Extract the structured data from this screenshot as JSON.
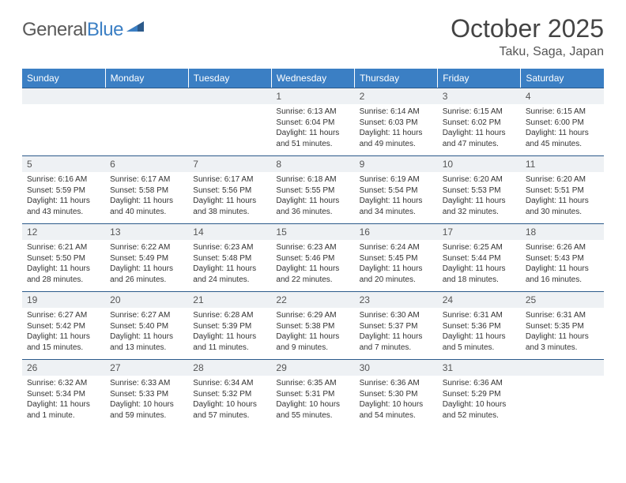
{
  "logo": {
    "part1": "General",
    "part2": "Blue"
  },
  "title": {
    "month": "October 2025",
    "location": "Taku, Saga, Japan"
  },
  "colors": {
    "header_bg": "#3b7fc4",
    "header_text": "#ffffff",
    "daynum_bg": "#eef1f4",
    "row_border": "#2c5a8a",
    "text": "#333333",
    "page_bg": "#ffffff"
  },
  "weekdays": [
    "Sunday",
    "Monday",
    "Tuesday",
    "Wednesday",
    "Thursday",
    "Friday",
    "Saturday"
  ],
  "weeks": [
    [
      {
        "n": "",
        "lines": []
      },
      {
        "n": "",
        "lines": []
      },
      {
        "n": "",
        "lines": []
      },
      {
        "n": "1",
        "lines": [
          "Sunrise: 6:13 AM",
          "Sunset: 6:04 PM",
          "Daylight: 11 hours and 51 minutes."
        ]
      },
      {
        "n": "2",
        "lines": [
          "Sunrise: 6:14 AM",
          "Sunset: 6:03 PM",
          "Daylight: 11 hours and 49 minutes."
        ]
      },
      {
        "n": "3",
        "lines": [
          "Sunrise: 6:15 AM",
          "Sunset: 6:02 PM",
          "Daylight: 11 hours and 47 minutes."
        ]
      },
      {
        "n": "4",
        "lines": [
          "Sunrise: 6:15 AM",
          "Sunset: 6:00 PM",
          "Daylight: 11 hours and 45 minutes."
        ]
      }
    ],
    [
      {
        "n": "5",
        "lines": [
          "Sunrise: 6:16 AM",
          "Sunset: 5:59 PM",
          "Daylight: 11 hours and 43 minutes."
        ]
      },
      {
        "n": "6",
        "lines": [
          "Sunrise: 6:17 AM",
          "Sunset: 5:58 PM",
          "Daylight: 11 hours and 40 minutes."
        ]
      },
      {
        "n": "7",
        "lines": [
          "Sunrise: 6:17 AM",
          "Sunset: 5:56 PM",
          "Daylight: 11 hours and 38 minutes."
        ]
      },
      {
        "n": "8",
        "lines": [
          "Sunrise: 6:18 AM",
          "Sunset: 5:55 PM",
          "Daylight: 11 hours and 36 minutes."
        ]
      },
      {
        "n": "9",
        "lines": [
          "Sunrise: 6:19 AM",
          "Sunset: 5:54 PM",
          "Daylight: 11 hours and 34 minutes."
        ]
      },
      {
        "n": "10",
        "lines": [
          "Sunrise: 6:20 AM",
          "Sunset: 5:53 PM",
          "Daylight: 11 hours and 32 minutes."
        ]
      },
      {
        "n": "11",
        "lines": [
          "Sunrise: 6:20 AM",
          "Sunset: 5:51 PM",
          "Daylight: 11 hours and 30 minutes."
        ]
      }
    ],
    [
      {
        "n": "12",
        "lines": [
          "Sunrise: 6:21 AM",
          "Sunset: 5:50 PM",
          "Daylight: 11 hours and 28 minutes."
        ]
      },
      {
        "n": "13",
        "lines": [
          "Sunrise: 6:22 AM",
          "Sunset: 5:49 PM",
          "Daylight: 11 hours and 26 minutes."
        ]
      },
      {
        "n": "14",
        "lines": [
          "Sunrise: 6:23 AM",
          "Sunset: 5:48 PM",
          "Daylight: 11 hours and 24 minutes."
        ]
      },
      {
        "n": "15",
        "lines": [
          "Sunrise: 6:23 AM",
          "Sunset: 5:46 PM",
          "Daylight: 11 hours and 22 minutes."
        ]
      },
      {
        "n": "16",
        "lines": [
          "Sunrise: 6:24 AM",
          "Sunset: 5:45 PM",
          "Daylight: 11 hours and 20 minutes."
        ]
      },
      {
        "n": "17",
        "lines": [
          "Sunrise: 6:25 AM",
          "Sunset: 5:44 PM",
          "Daylight: 11 hours and 18 minutes."
        ]
      },
      {
        "n": "18",
        "lines": [
          "Sunrise: 6:26 AM",
          "Sunset: 5:43 PM",
          "Daylight: 11 hours and 16 minutes."
        ]
      }
    ],
    [
      {
        "n": "19",
        "lines": [
          "Sunrise: 6:27 AM",
          "Sunset: 5:42 PM",
          "Daylight: 11 hours and 15 minutes."
        ]
      },
      {
        "n": "20",
        "lines": [
          "Sunrise: 6:27 AM",
          "Sunset: 5:40 PM",
          "Daylight: 11 hours and 13 minutes."
        ]
      },
      {
        "n": "21",
        "lines": [
          "Sunrise: 6:28 AM",
          "Sunset: 5:39 PM",
          "Daylight: 11 hours and 11 minutes."
        ]
      },
      {
        "n": "22",
        "lines": [
          "Sunrise: 6:29 AM",
          "Sunset: 5:38 PM",
          "Daylight: 11 hours and 9 minutes."
        ]
      },
      {
        "n": "23",
        "lines": [
          "Sunrise: 6:30 AM",
          "Sunset: 5:37 PM",
          "Daylight: 11 hours and 7 minutes."
        ]
      },
      {
        "n": "24",
        "lines": [
          "Sunrise: 6:31 AM",
          "Sunset: 5:36 PM",
          "Daylight: 11 hours and 5 minutes."
        ]
      },
      {
        "n": "25",
        "lines": [
          "Sunrise: 6:31 AM",
          "Sunset: 5:35 PM",
          "Daylight: 11 hours and 3 minutes."
        ]
      }
    ],
    [
      {
        "n": "26",
        "lines": [
          "Sunrise: 6:32 AM",
          "Sunset: 5:34 PM",
          "Daylight: 11 hours and 1 minute."
        ]
      },
      {
        "n": "27",
        "lines": [
          "Sunrise: 6:33 AM",
          "Sunset: 5:33 PM",
          "Daylight: 10 hours and 59 minutes."
        ]
      },
      {
        "n": "28",
        "lines": [
          "Sunrise: 6:34 AM",
          "Sunset: 5:32 PM",
          "Daylight: 10 hours and 57 minutes."
        ]
      },
      {
        "n": "29",
        "lines": [
          "Sunrise: 6:35 AM",
          "Sunset: 5:31 PM",
          "Daylight: 10 hours and 55 minutes."
        ]
      },
      {
        "n": "30",
        "lines": [
          "Sunrise: 6:36 AM",
          "Sunset: 5:30 PM",
          "Daylight: 10 hours and 54 minutes."
        ]
      },
      {
        "n": "31",
        "lines": [
          "Sunrise: 6:36 AM",
          "Sunset: 5:29 PM",
          "Daylight: 10 hours and 52 minutes."
        ]
      },
      {
        "n": "",
        "lines": []
      }
    ]
  ]
}
